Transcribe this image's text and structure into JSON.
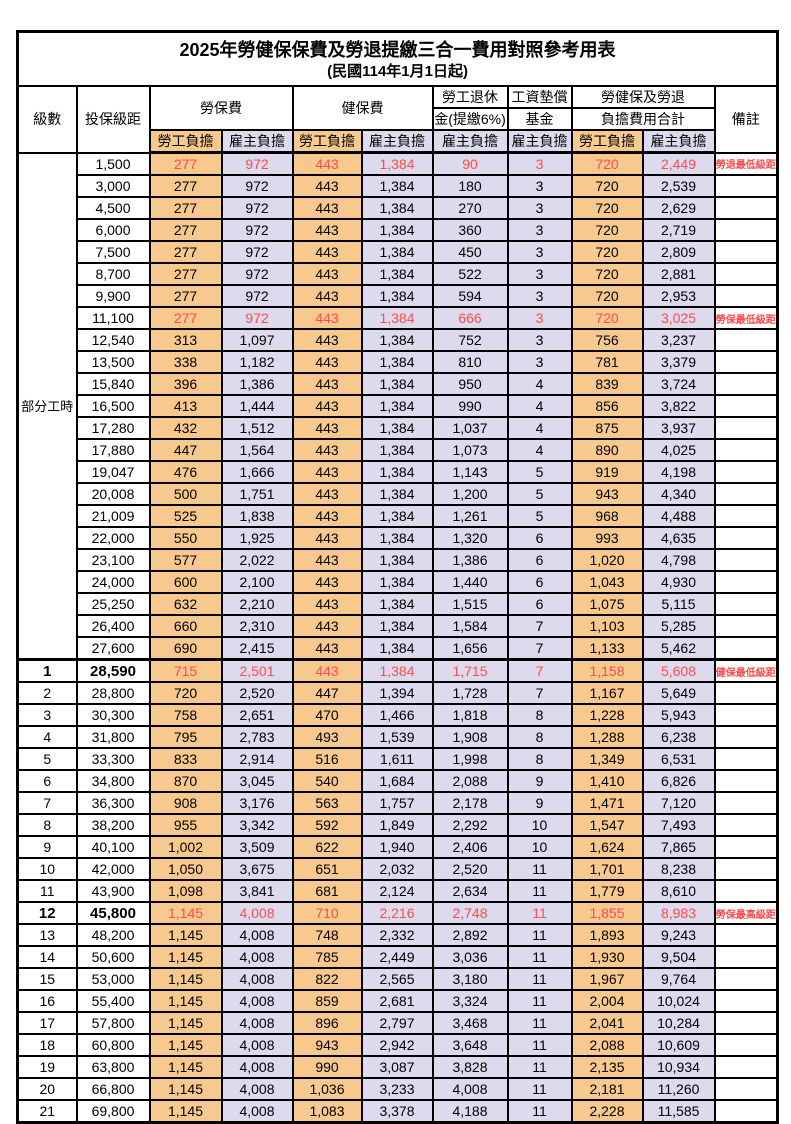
{
  "title": "2025年勞健保保費及勞退提繳三合一費用對照參考用表",
  "subtitle": "(民國114年1月1日起)",
  "colors": {
    "employee_col_bg": "#F8C98F",
    "employer_col_bg": "#DCDAEC",
    "highlight_red": "#FF4C4C",
    "border": "#000000"
  },
  "header": {
    "grade": "級數",
    "bracket": "投保級距",
    "labor_insurance": "勞保費",
    "health_insurance": "健保費",
    "pension_line1": "勞工退休",
    "pension_line2": "金(提繳6%)",
    "wage_fund_line1": "工資墊償",
    "wage_fund_line2": "基金",
    "total_line1": "勞健保及勞退",
    "total_line2": "負擔費用合計",
    "remark": "備註",
    "employee": "勞工負擔",
    "employer": "雇主負擔"
  },
  "part_time_label": "部分工時",
  "table": {
    "columns": [
      "級數",
      "投保級距",
      "勞保費-勞工負擔",
      "勞保費-雇主負擔",
      "健保費-勞工負擔",
      "健保費-雇主負擔",
      "勞工退休金(提繳6%)-雇主負擔",
      "工資墊償基金-雇主負擔",
      "合計-勞工負擔",
      "合計-雇主負擔",
      "備註"
    ],
    "rows": [
      {
        "grade": "",
        "bracket": "1,500",
        "values": [
          "277",
          "972",
          "443",
          "1,384",
          "90",
          "3",
          "720",
          "2,449"
        ],
        "remark": "勞退最低級距",
        "highlight": true,
        "bold": false
      },
      {
        "grade": "",
        "bracket": "3,000",
        "values": [
          "277",
          "972",
          "443",
          "1,384",
          "180",
          "3",
          "720",
          "2,539"
        ],
        "remark": "",
        "highlight": false,
        "bold": false
      },
      {
        "grade": "",
        "bracket": "4,500",
        "values": [
          "277",
          "972",
          "443",
          "1,384",
          "270",
          "3",
          "720",
          "2,629"
        ],
        "remark": "",
        "highlight": false,
        "bold": false
      },
      {
        "grade": "",
        "bracket": "6,000",
        "values": [
          "277",
          "972",
          "443",
          "1,384",
          "360",
          "3",
          "720",
          "2,719"
        ],
        "remark": "",
        "highlight": false,
        "bold": false
      },
      {
        "grade": "",
        "bracket": "7,500",
        "values": [
          "277",
          "972",
          "443",
          "1,384",
          "450",
          "3",
          "720",
          "2,809"
        ],
        "remark": "",
        "highlight": false,
        "bold": false
      },
      {
        "grade": "",
        "bracket": "8,700",
        "values": [
          "277",
          "972",
          "443",
          "1,384",
          "522",
          "3",
          "720",
          "2,881"
        ],
        "remark": "",
        "highlight": false,
        "bold": false
      },
      {
        "grade": "",
        "bracket": "9,900",
        "values": [
          "277",
          "972",
          "443",
          "1,384",
          "594",
          "3",
          "720",
          "2,953"
        ],
        "remark": "",
        "highlight": false,
        "bold": false
      },
      {
        "grade": "",
        "bracket": "11,100",
        "values": [
          "277",
          "972",
          "443",
          "1,384",
          "666",
          "3",
          "720",
          "3,025"
        ],
        "remark": "勞保最低級距",
        "highlight": true,
        "bold": false
      },
      {
        "grade": "",
        "bracket": "12,540",
        "values": [
          "313",
          "1,097",
          "443",
          "1,384",
          "752",
          "3",
          "756",
          "3,237"
        ],
        "remark": "",
        "highlight": false,
        "bold": false
      },
      {
        "grade": "",
        "bracket": "13,500",
        "values": [
          "338",
          "1,182",
          "443",
          "1,384",
          "810",
          "3",
          "781",
          "3,379"
        ],
        "remark": "",
        "highlight": false,
        "bold": false
      },
      {
        "grade": "",
        "bracket": "15,840",
        "values": [
          "396",
          "1,386",
          "443",
          "1,384",
          "950",
          "4",
          "839",
          "3,724"
        ],
        "remark": "",
        "highlight": false,
        "bold": false
      },
      {
        "grade": "",
        "bracket": "16,500",
        "values": [
          "413",
          "1,444",
          "443",
          "1,384",
          "990",
          "4",
          "856",
          "3,822"
        ],
        "remark": "",
        "highlight": false,
        "bold": false
      },
      {
        "grade": "",
        "bracket": "17,280",
        "values": [
          "432",
          "1,512",
          "443",
          "1,384",
          "1,037",
          "4",
          "875",
          "3,937"
        ],
        "remark": "",
        "highlight": false,
        "bold": false
      },
      {
        "grade": "",
        "bracket": "17,880",
        "values": [
          "447",
          "1,564",
          "443",
          "1,384",
          "1,073",
          "4",
          "890",
          "4,025"
        ],
        "remark": "",
        "highlight": false,
        "bold": false
      },
      {
        "grade": "",
        "bracket": "19,047",
        "values": [
          "476",
          "1,666",
          "443",
          "1,384",
          "1,143",
          "5",
          "919",
          "4,198"
        ],
        "remark": "",
        "highlight": false,
        "bold": false
      },
      {
        "grade": "",
        "bracket": "20,008",
        "values": [
          "500",
          "1,751",
          "443",
          "1,384",
          "1,200",
          "5",
          "943",
          "4,340"
        ],
        "remark": "",
        "highlight": false,
        "bold": false
      },
      {
        "grade": "",
        "bracket": "21,009",
        "values": [
          "525",
          "1,838",
          "443",
          "1,384",
          "1,261",
          "5",
          "968",
          "4,488"
        ],
        "remark": "",
        "highlight": false,
        "bold": false
      },
      {
        "grade": "",
        "bracket": "22,000",
        "values": [
          "550",
          "1,925",
          "443",
          "1,384",
          "1,320",
          "6",
          "993",
          "4,635"
        ],
        "remark": "",
        "highlight": false,
        "bold": false
      },
      {
        "grade": "",
        "bracket": "23,100",
        "values": [
          "577",
          "2,022",
          "443",
          "1,384",
          "1,386",
          "6",
          "1,020",
          "4,798"
        ],
        "remark": "",
        "highlight": false,
        "bold": false
      },
      {
        "grade": "",
        "bracket": "24,000",
        "values": [
          "600",
          "2,100",
          "443",
          "1,384",
          "1,440",
          "6",
          "1,043",
          "4,930"
        ],
        "remark": "",
        "highlight": false,
        "bold": false
      },
      {
        "grade": "",
        "bracket": "25,250",
        "values": [
          "632",
          "2,210",
          "443",
          "1,384",
          "1,515",
          "6",
          "1,075",
          "5,115"
        ],
        "remark": "",
        "highlight": false,
        "bold": false
      },
      {
        "grade": "",
        "bracket": "26,400",
        "values": [
          "660",
          "2,310",
          "443",
          "1,384",
          "1,584",
          "7",
          "1,103",
          "5,285"
        ],
        "remark": "",
        "highlight": false,
        "bold": false
      },
      {
        "grade": "",
        "bracket": "27,600",
        "values": [
          "690",
          "2,415",
          "443",
          "1,384",
          "1,656",
          "7",
          "1,133",
          "5,462"
        ],
        "remark": "",
        "highlight": false,
        "bold": false
      },
      {
        "grade": "1",
        "bracket": "28,590",
        "values": [
          "715",
          "2,501",
          "443",
          "1,384",
          "1,715",
          "7",
          "1,158",
          "5,608"
        ],
        "remark": "健保最低級距",
        "highlight": true,
        "bold": true
      },
      {
        "grade": "2",
        "bracket": "28,800",
        "values": [
          "720",
          "2,520",
          "447",
          "1,394",
          "1,728",
          "7",
          "1,167",
          "5,649"
        ],
        "remark": "",
        "highlight": false,
        "bold": false
      },
      {
        "grade": "3",
        "bracket": "30,300",
        "values": [
          "758",
          "2,651",
          "470",
          "1,466",
          "1,818",
          "8",
          "1,228",
          "5,943"
        ],
        "remark": "",
        "highlight": false,
        "bold": false
      },
      {
        "grade": "4",
        "bracket": "31,800",
        "values": [
          "795",
          "2,783",
          "493",
          "1,539",
          "1,908",
          "8",
          "1,288",
          "6,238"
        ],
        "remark": "",
        "highlight": false,
        "bold": false
      },
      {
        "grade": "5",
        "bracket": "33,300",
        "values": [
          "833",
          "2,914",
          "516",
          "1,611",
          "1,998",
          "8",
          "1,349",
          "6,531"
        ],
        "remark": "",
        "highlight": false,
        "bold": false
      },
      {
        "grade": "6",
        "bracket": "34,800",
        "values": [
          "870",
          "3,045",
          "540",
          "1,684",
          "2,088",
          "9",
          "1,410",
          "6,826"
        ],
        "remark": "",
        "highlight": false,
        "bold": false
      },
      {
        "grade": "7",
        "bracket": "36,300",
        "values": [
          "908",
          "3,176",
          "563",
          "1,757",
          "2,178",
          "9",
          "1,471",
          "7,120"
        ],
        "remark": "",
        "highlight": false,
        "bold": false
      },
      {
        "grade": "8",
        "bracket": "38,200",
        "values": [
          "955",
          "3,342",
          "592",
          "1,849",
          "2,292",
          "10",
          "1,547",
          "7,493"
        ],
        "remark": "",
        "highlight": false,
        "bold": false
      },
      {
        "grade": "9",
        "bracket": "40,100",
        "values": [
          "1,002",
          "3,509",
          "622",
          "1,940",
          "2,406",
          "10",
          "1,624",
          "7,865"
        ],
        "remark": "",
        "highlight": false,
        "bold": false
      },
      {
        "grade": "10",
        "bracket": "42,000",
        "values": [
          "1,050",
          "3,675",
          "651",
          "2,032",
          "2,520",
          "11",
          "1,701",
          "8,238"
        ],
        "remark": "",
        "highlight": false,
        "bold": false
      },
      {
        "grade": "11",
        "bracket": "43,900",
        "values": [
          "1,098",
          "3,841",
          "681",
          "2,124",
          "2,634",
          "11",
          "1,779",
          "8,610"
        ],
        "remark": "",
        "highlight": false,
        "bold": false
      },
      {
        "grade": "12",
        "bracket": "45,800",
        "values": [
          "1,145",
          "4,008",
          "710",
          "2,216",
          "2,748",
          "11",
          "1,855",
          "8,983"
        ],
        "remark": "勞保最高級距",
        "highlight": true,
        "bold": true
      },
      {
        "grade": "13",
        "bracket": "48,200",
        "values": [
          "1,145",
          "4,008",
          "748",
          "2,332",
          "2,892",
          "11",
          "1,893",
          "9,243"
        ],
        "remark": "",
        "highlight": false,
        "bold": false
      },
      {
        "grade": "14",
        "bracket": "50,600",
        "values": [
          "1,145",
          "4,008",
          "785",
          "2,449",
          "3,036",
          "11",
          "1,930",
          "9,504"
        ],
        "remark": "",
        "highlight": false,
        "bold": false
      },
      {
        "grade": "15",
        "bracket": "53,000",
        "values": [
          "1,145",
          "4,008",
          "822",
          "2,565",
          "3,180",
          "11",
          "1,967",
          "9,764"
        ],
        "remark": "",
        "highlight": false,
        "bold": false
      },
      {
        "grade": "16",
        "bracket": "55,400",
        "values": [
          "1,145",
          "4,008",
          "859",
          "2,681",
          "3,324",
          "11",
          "2,004",
          "10,024"
        ],
        "remark": "",
        "highlight": false,
        "bold": false
      },
      {
        "grade": "17",
        "bracket": "57,800",
        "values": [
          "1,145",
          "4,008",
          "896",
          "2,797",
          "3,468",
          "11",
          "2,041",
          "10,284"
        ],
        "remark": "",
        "highlight": false,
        "bold": false
      },
      {
        "grade": "18",
        "bracket": "60,800",
        "values": [
          "1,145",
          "4,008",
          "943",
          "2,942",
          "3,648",
          "11",
          "2,088",
          "10,609"
        ],
        "remark": "",
        "highlight": false,
        "bold": false
      },
      {
        "grade": "19",
        "bracket": "63,800",
        "values": [
          "1,145",
          "4,008",
          "990",
          "3,087",
          "3,828",
          "11",
          "2,135",
          "10,934"
        ],
        "remark": "",
        "highlight": false,
        "bold": false
      },
      {
        "grade": "20",
        "bracket": "66,800",
        "values": [
          "1,145",
          "4,008",
          "1,036",
          "3,233",
          "4,008",
          "11",
          "2,181",
          "11,260"
        ],
        "remark": "",
        "highlight": false,
        "bold": false
      },
      {
        "grade": "21",
        "bracket": "69,800",
        "values": [
          "1,145",
          "4,008",
          "1,083",
          "3,378",
          "4,188",
          "11",
          "2,228",
          "11,585"
        ],
        "remark": "",
        "highlight": false,
        "bold": false
      }
    ]
  }
}
